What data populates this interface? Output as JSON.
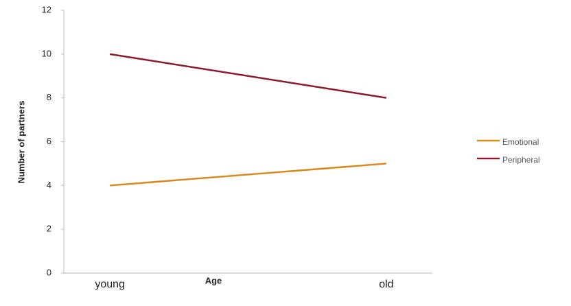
{
  "chart_data": {
    "type": "line",
    "x_label": "Age",
    "y_label": "Number of partners",
    "categories": [
      "young",
      "old"
    ],
    "series": [
      {
        "name": "Emotional",
        "color": "#d98a1f",
        "values": [
          4,
          5
        ]
      },
      {
        "name": "Peripheral",
        "color": "#8b1a2b",
        "values": [
          10,
          8
        ]
      }
    ],
    "ylim": [
      0,
      12
    ],
    "yticks": [
      0,
      2,
      4,
      6,
      8,
      10,
      12
    ],
    "legend": "right"
  }
}
